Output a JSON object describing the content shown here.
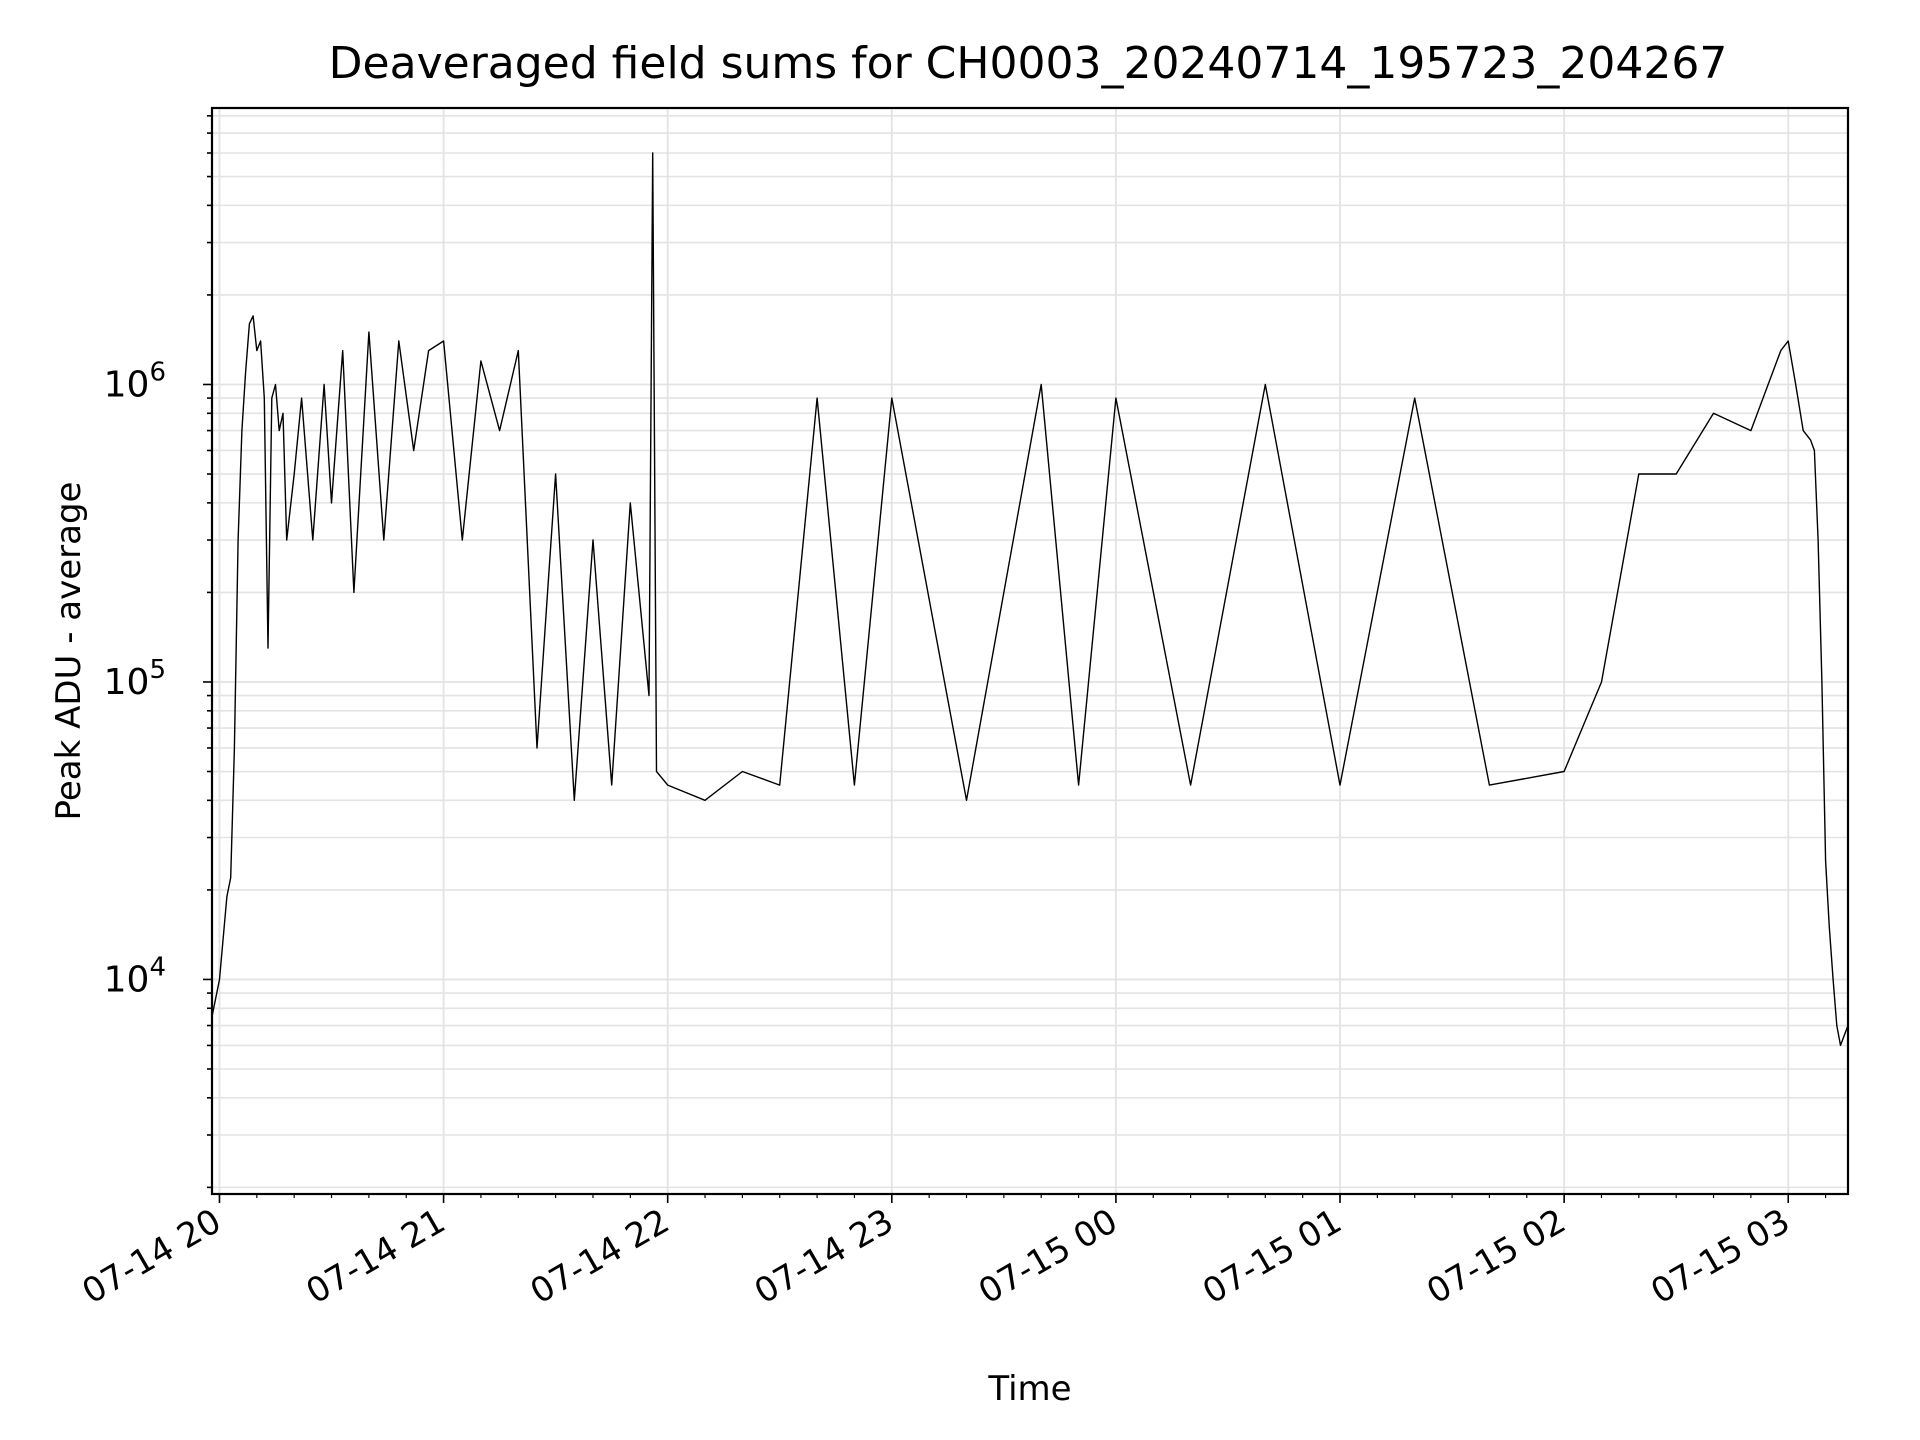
{
  "chart_data": {
    "type": "line",
    "title": "Deaveraged field sums for CH0003_20240714_195723_204267",
    "xlabel": "Time",
    "ylabel": "Peak ADU - average",
    "y_scale": "log",
    "ylim": [
      1900,
      8500000
    ],
    "xlim": [
      "2024-07-14 19:58",
      "2024-07-15 03:16"
    ],
    "grid": true,
    "line_color": "#000000",
    "x_ticks": [
      {
        "label": "07-14 20",
        "t": "2024-07-14 20:00"
      },
      {
        "label": "07-14 21",
        "t": "2024-07-14 21:00"
      },
      {
        "label": "07-14 22",
        "t": "2024-07-14 22:00"
      },
      {
        "label": "07-14 23",
        "t": "2024-07-14 23:00"
      },
      {
        "label": "07-15 00",
        "t": "2024-07-15 00:00"
      },
      {
        "label": "07-15 01",
        "t": "2024-07-15 01:00"
      },
      {
        "label": "07-15 02",
        "t": "2024-07-15 02:00"
      },
      {
        "label": "07-15 03",
        "t": "2024-07-15 03:00"
      }
    ],
    "y_ticks": [
      {
        "base": "10",
        "exp": "4",
        "value": 10000
      },
      {
        "base": "10",
        "exp": "5",
        "value": 100000
      },
      {
        "base": "10",
        "exp": "6",
        "value": 1000000
      }
    ],
    "series": [
      {
        "x": [
          "2024-07-14 19:58",
          "2024-07-14 20:00",
          "2024-07-14 20:02",
          "2024-07-14 20:03",
          "2024-07-14 20:04",
          "2024-07-14 20:05",
          "2024-07-14 20:06",
          "2024-07-14 20:07",
          "2024-07-14 20:08",
          "2024-07-14 20:09",
          "2024-07-14 20:10",
          "2024-07-14 20:11",
          "2024-07-14 20:12",
          "2024-07-14 20:13",
          "2024-07-14 20:14",
          "2024-07-14 20:15",
          "2024-07-14 20:16",
          "2024-07-14 20:17",
          "2024-07-14 20:18",
          "2024-07-14 20:20",
          "2024-07-14 20:22",
          "2024-07-14 20:25",
          "2024-07-14 20:28",
          "2024-07-14 20:30",
          "2024-07-14 20:33",
          "2024-07-14 20:36",
          "2024-07-14 20:40",
          "2024-07-14 20:44",
          "2024-07-14 20:48",
          "2024-07-14 20:52",
          "2024-07-14 20:56",
          "2024-07-14 21:00",
          "2024-07-14 21:05",
          "2024-07-14 21:10",
          "2024-07-14 21:15",
          "2024-07-14 21:20",
          "2024-07-14 21:25",
          "2024-07-14 21:30",
          "2024-07-14 21:35",
          "2024-07-14 21:40",
          "2024-07-14 21:45",
          "2024-07-14 21:50",
          "2024-07-14 21:55",
          "2024-07-14 21:56",
          "2024-07-14 21:57",
          "2024-07-14 22:00",
          "2024-07-14 22:10",
          "2024-07-14 22:20",
          "2024-07-14 22:30",
          "2024-07-14 22:40",
          "2024-07-14 22:50",
          "2024-07-14 23:00",
          "2024-07-14 23:20",
          "2024-07-14 23:40",
          "2024-07-14 23:50",
          "2024-07-15 00:00",
          "2024-07-15 00:20",
          "2024-07-15 00:40",
          "2024-07-15 01:00",
          "2024-07-15 01:20",
          "2024-07-15 01:40",
          "2024-07-15 02:00",
          "2024-07-15 02:10",
          "2024-07-15 02:20",
          "2024-07-15 02:30",
          "2024-07-15 02:40",
          "2024-07-15 02:50",
          "2024-07-15 02:58",
          "2024-07-15 03:00",
          "2024-07-15 03:02",
          "2024-07-15 03:04",
          "2024-07-15 03:06",
          "2024-07-15 03:07",
          "2024-07-15 03:08",
          "2024-07-15 03:09",
          "2024-07-15 03:10",
          "2024-07-15 03:11",
          "2024-07-15 03:12",
          "2024-07-15 03:13",
          "2024-07-15 03:14",
          "2024-07-15 03:16"
        ],
        "values": [
          7500,
          10000,
          19000,
          22000,
          60000,
          300000,
          700000,
          1100000,
          1600000,
          1700000,
          1300000,
          1400000,
          900000,
          130000,
          900000,
          1000000,
          700000,
          800000,
          300000,
          500000,
          900000,
          300000,
          1000000,
          400000,
          1300000,
          200000,
          1500000,
          300000,
          1400000,
          600000,
          1300000,
          1400000,
          300000,
          1200000,
          700000,
          1300000,
          60000,
          500000,
          40000,
          300000,
          45000,
          400000,
          90000,
          6000000,
          50000,
          45000,
          40000,
          50000,
          45000,
          900000,
          45000,
          900000,
          40000,
          1000000,
          45000,
          900000,
          45000,
          1000000,
          45000,
          900000,
          45000,
          50000,
          100000,
          500000,
          500000,
          800000,
          700000,
          1300000,
          1400000,
          1000000,
          700000,
          650000,
          600000,
          300000,
          100000,
          25000,
          15000,
          10000,
          7000,
          6000,
          7000
        ]
      }
    ]
  }
}
